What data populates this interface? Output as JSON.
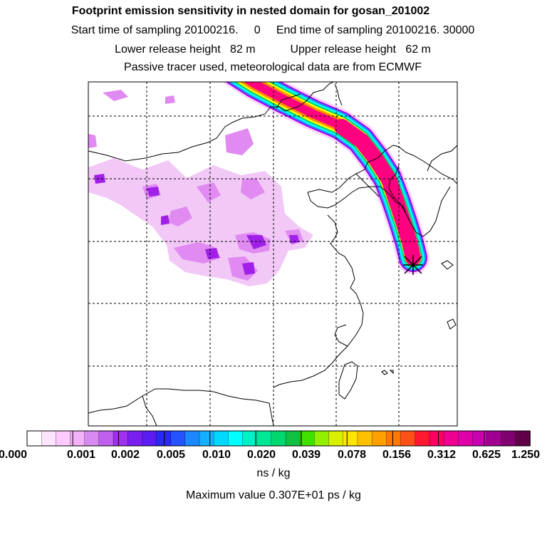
{
  "header": {
    "title": "Footprint emission sensitivity in nested domain for gosan_201002",
    "sampling_line": "Start time of sampling 20100216.     0     End time of sampling 20100216. 30000",
    "release_line": "Lower release height   82 m           Upper release height   62 m",
    "tracer_line": "Passive tracer used, meteorological data are from ECMWF"
  },
  "map": {
    "station_marker": "gosan-station-icon",
    "colors": {
      "plume_outer": "#ffd0ff",
      "plume_violet": "#a000f0",
      "plume_blue": "#1e90ff",
      "plume_cyan": "#00ffff",
      "plume_green": "#00d070",
      "plume_yellow": "#ffff00",
      "plume_orange": "#ff8c00",
      "plume_core": "#ff0080",
      "diffuse_light": "#f2c8f6",
      "diffuse_mid": "#e08af2",
      "diffuse_dark": "#a020e8"
    }
  },
  "colorbar": {
    "colors": [
      "#ffffff",
      "#ffe4ff",
      "#ffcaff",
      "#f3b1f7",
      "#d88af2",
      "#c060ee",
      "#a030f0",
      "#7a1ff0",
      "#5a1cf0",
      "#2a28f6",
      "#2454ff",
      "#1c88ff",
      "#14b0ff",
      "#00d8ff",
      "#00ffff",
      "#00f0c8",
      "#00e896",
      "#00d870",
      "#10c040",
      "#40e000",
      "#90f000",
      "#d8f000",
      "#ffe600",
      "#ffc000",
      "#ffa000",
      "#ff7800",
      "#ff5018",
      "#ff1830",
      "#ff0060",
      "#f00090",
      "#e000a8",
      "#c800b0",
      "#a00090",
      "#800070",
      "#600048"
    ],
    "ticks": [
      "0.000",
      "0.001",
      "0.002",
      "0.005",
      "0.010",
      "0.020",
      "0.039",
      "0.078",
      "0.156",
      "0.312",
      "0.625",
      "1.250"
    ],
    "units": "ns / kg"
  },
  "footer": {
    "max_value": "Maximum value  0.307E+01 ps / kg"
  }
}
